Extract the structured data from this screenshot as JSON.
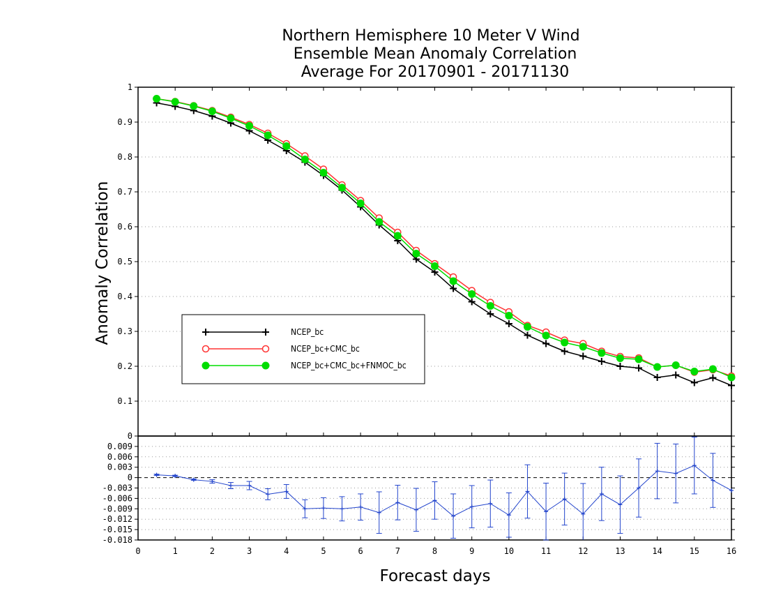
{
  "chart_data": {
    "type": "line",
    "title_lines": [
      "Northern Hemisphere 10 Meter V Wind",
      "Ensemble Mean Anomaly Correlation",
      "Average For 20170901 - 20171130"
    ],
    "xlabel": "Forecast days",
    "ylabel": "Anomaly Correlation",
    "x_ticks": [
      "0",
      "1",
      "2",
      "3",
      "4",
      "5",
      "6",
      "7",
      "8",
      "9",
      "10",
      "11",
      "12",
      "13",
      "14",
      "15",
      "16"
    ],
    "xlim": [
      0,
      16
    ],
    "grid": true,
    "legend_position": "middle-left",
    "top_panel": {
      "ylim": [
        0,
        1
      ],
      "y_ticks": [
        "0",
        "0.1",
        "0.2",
        "0.3",
        "0.4",
        "0.5",
        "0.6",
        "0.7",
        "0.8",
        "0.9",
        "1"
      ],
      "x": [
        0.5,
        1,
        1.5,
        2,
        2.5,
        3,
        3.5,
        4,
        4.5,
        5,
        5.5,
        6,
        6.5,
        7,
        7.5,
        8,
        8.5,
        9,
        9.5,
        10,
        10.5,
        11,
        11.5,
        12,
        12.5,
        13,
        13.5,
        14,
        14.5,
        15,
        15.5,
        16
      ],
      "series": [
        {
          "name": "NCEP_bc",
          "color": "#000000",
          "marker": "plus",
          "values": [
            0.955,
            0.945,
            0.933,
            0.917,
            0.897,
            0.875,
            0.848,
            0.818,
            0.785,
            0.747,
            0.705,
            0.657,
            0.605,
            0.56,
            0.507,
            0.47,
            0.423,
            0.385,
            0.35,
            0.322,
            0.289,
            0.265,
            0.243,
            0.229,
            0.214,
            0.2,
            0.195,
            0.168,
            0.175,
            0.153,
            0.167,
            0.145
          ]
        },
        {
          "name": "NCEP_bc+CMC_bc",
          "color": "#ff3333",
          "marker": "open-circle",
          "values": [
            0.967,
            0.959,
            0.947,
            0.933,
            0.914,
            0.893,
            0.868,
            0.838,
            0.803,
            0.765,
            0.72,
            0.675,
            0.625,
            0.584,
            0.532,
            0.494,
            0.456,
            0.417,
            0.383,
            0.356,
            0.317,
            0.298,
            0.275,
            0.265,
            0.243,
            0.228,
            0.224,
            0.198,
            0.203,
            0.183,
            0.19,
            0.172
          ]
        },
        {
          "name": "NCEP_bc+CMC_bc+FNMOC_bc",
          "color": "#00dd00",
          "marker": "filled-circle",
          "values": [
            0.967,
            0.958,
            0.946,
            0.931,
            0.911,
            0.889,
            0.862,
            0.831,
            0.793,
            0.755,
            0.712,
            0.667,
            0.614,
            0.574,
            0.523,
            0.487,
            0.444,
            0.407,
            0.373,
            0.345,
            0.313,
            0.288,
            0.268,
            0.256,
            0.238,
            0.223,
            0.22,
            0.198,
            0.203,
            0.185,
            0.192,
            0.168
          ]
        }
      ]
    },
    "bottom_panel": {
      "ylim": [
        -0.018,
        0.012
      ],
      "y_ticks": [
        "0.009",
        "0.006",
        "0.003",
        "0",
        "-0.003",
        "-0.006",
        "-0.009",
        "-0.012",
        "-0.015",
        "-0.018"
      ],
      "top_axis_label": "0",
      "zero_line": "dashed",
      "color": "#2244cc",
      "x": [
        0.5,
        1,
        1.5,
        2,
        2.5,
        3,
        3.5,
        4,
        4.5,
        5,
        5.5,
        6,
        6.5,
        7,
        7.5,
        8,
        8.5,
        9,
        9.5,
        10,
        10.5,
        11,
        11.5,
        12,
        12.5,
        13,
        13.5,
        14,
        14.5,
        15,
        15.5,
        16
      ],
      "values": [
        0.0008,
        0.0005,
        -0.0006,
        -0.0011,
        -0.0023,
        -0.0023,
        -0.0048,
        -0.004,
        -0.009,
        -0.0088,
        -0.009,
        -0.0085,
        -0.0101,
        -0.0072,
        -0.0093,
        -0.0066,
        -0.0111,
        -0.0084,
        -0.0075,
        -0.0108,
        -0.004,
        -0.0098,
        -0.0062,
        -0.0105,
        -0.0047,
        -0.0078,
        -0.003,
        0.0019,
        0.0012,
        0.0035,
        -0.0008,
        -0.0037
      ],
      "error": [
        0.0002,
        0.0002,
        0.0002,
        0.0005,
        0.0009,
        0.0012,
        0.0016,
        0.002,
        0.0026,
        0.003,
        0.0035,
        0.0038,
        0.006,
        0.005,
        0.0062,
        0.0054,
        0.0064,
        0.0061,
        0.0068,
        0.0064,
        0.0077,
        0.0082,
        0.0075,
        0.0088,
        0.0077,
        0.0083,
        0.0084,
        0.008,
        0.0085,
        0.0082,
        0.0078,
        0.0
      ]
    }
  }
}
